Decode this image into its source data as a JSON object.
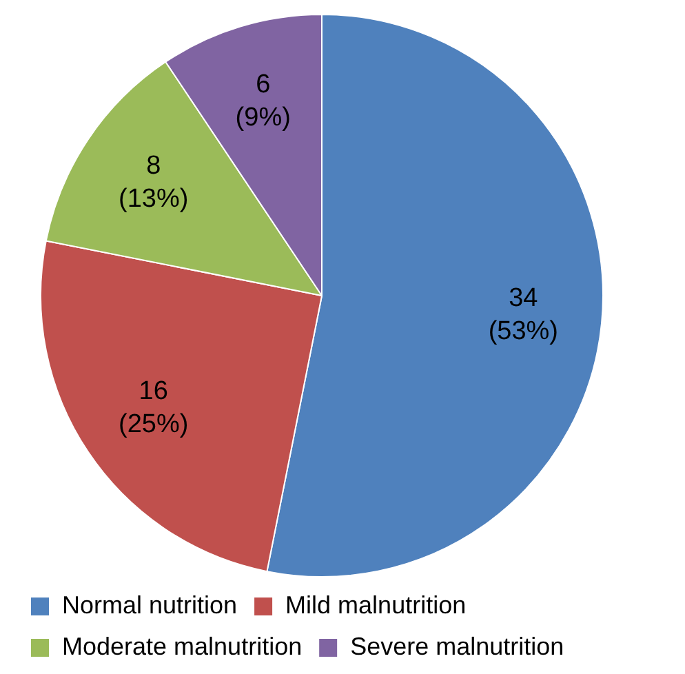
{
  "chart_data": {
    "type": "pie",
    "categories": [
      "Normal nutrition",
      "Mild malnutrition",
      "Moderate malnutrition",
      "Severe malnutrition"
    ],
    "values": [
      34,
      16,
      8,
      6
    ],
    "colors": [
      "#4f81bd",
      "#c0504d",
      "#9bbb59",
      "#8064a2"
    ],
    "value_labels": [
      "34\n(53%)",
      "16\n(25%)",
      "8\n(13%)",
      "6\n(9%)"
    ],
    "legend": "bottom"
  }
}
